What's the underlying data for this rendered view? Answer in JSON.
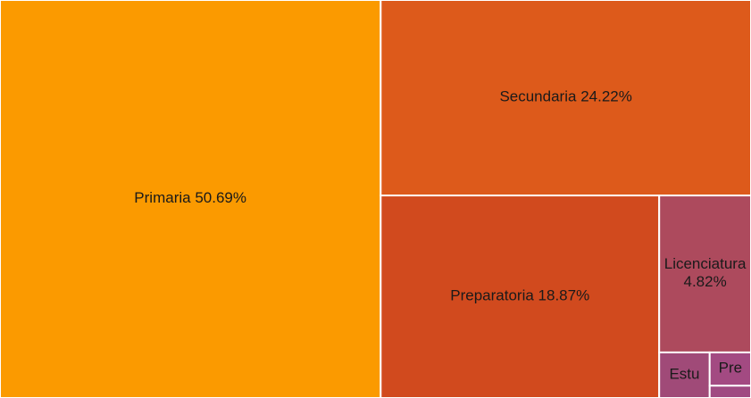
{
  "chart_data": {
    "type": "treemap",
    "categories": [
      "Primaria",
      "Secundaria",
      "Preparatoria",
      "Licenciatura",
      "Estu",
      "Pre",
      null
    ],
    "values": [
      50.69,
      24.22,
      18.87,
      4.82,
      0.77,
      0.46,
      0.17
    ],
    "value_labels": [
      "50.69%",
      "24.22%",
      "18.87%",
      "4.82%",
      null,
      null,
      null
    ],
    "colors": [
      "#fb9a00",
      "#dd5a1b",
      "#d14a1e",
      "#ad4a5d",
      "#a04a78",
      "#a34a82",
      "#a04a82"
    ]
  }
}
